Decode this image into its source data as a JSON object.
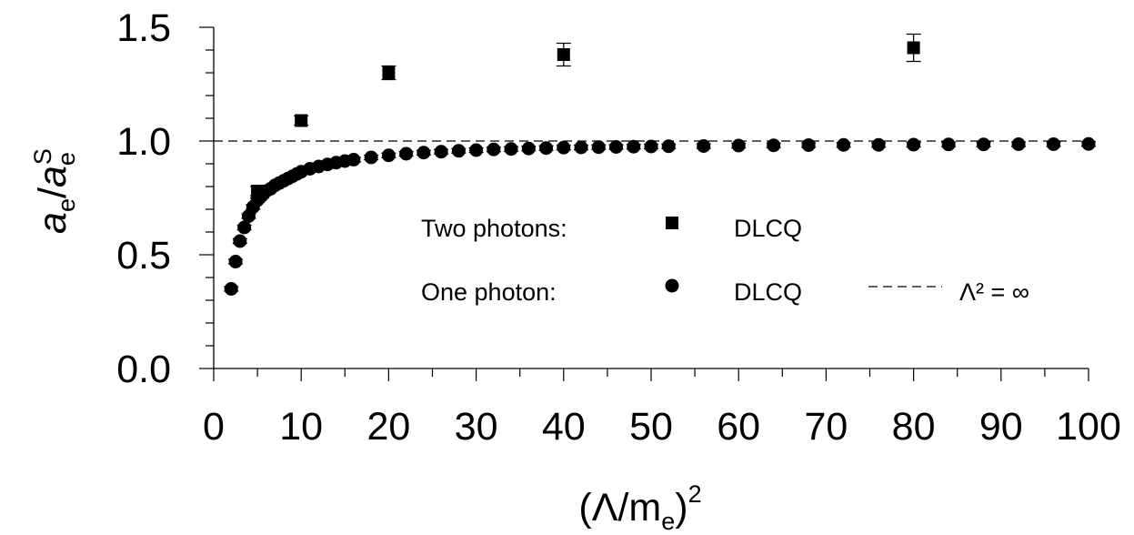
{
  "chart_data": {
    "type": "scatter",
    "xlabel": {
      "base": "(Λ/m",
      "sub": "e",
      "tail": ")",
      "sup": "2"
    },
    "ylabel": {
      "num": "a",
      "num_sub": "e",
      "slash": "/",
      "den": "a",
      "den_sub": "e",
      "den_sup": "S"
    },
    "xlim": [
      0,
      100
    ],
    "ylim": [
      0,
      1.5
    ],
    "x_ticks": [
      0,
      10,
      20,
      30,
      40,
      50,
      60,
      70,
      80,
      90,
      100
    ],
    "x_tick_labels": [
      "0",
      "10",
      "20",
      "30",
      "40",
      "50",
      "60",
      "70",
      "80",
      "90",
      "100"
    ],
    "y_ticks": [
      0,
      0.5,
      1.0,
      1.5
    ],
    "y_tick_labels": [
      "0.0",
      "0.5",
      "1.0",
      "1.5"
    ],
    "grid": false,
    "reference_line": {
      "y": 1.0,
      "style": "dashed",
      "label": "Λ² = ∞"
    },
    "series": [
      {
        "name": "DLCQ",
        "group_label": "Two photons:",
        "marker": "square",
        "x": [
          5,
          10,
          20,
          40,
          80
        ],
        "y": [
          0.78,
          1.09,
          1.3,
          1.38,
          1.41
        ],
        "err": [
          0.02,
          0.02,
          0.03,
          0.05,
          0.06
        ]
      },
      {
        "name": "DLCQ",
        "group_label": "One photon:",
        "marker": "circle",
        "x": [
          2,
          2.5,
          3,
          3.5,
          4,
          4.5,
          5,
          5.5,
          6,
          6.5,
          7,
          7.5,
          8,
          8.5,
          9,
          9.5,
          10,
          11,
          12,
          13,
          14,
          15,
          16,
          18,
          20,
          22,
          24,
          26,
          28,
          30,
          32,
          34,
          36,
          38,
          40,
          42,
          44,
          46,
          48,
          50,
          52,
          56,
          60,
          64,
          68,
          72,
          76,
          80,
          84,
          88,
          92,
          96,
          100
        ],
        "y": [
          0.35,
          0.47,
          0.56,
          0.62,
          0.67,
          0.71,
          0.74,
          0.76,
          0.78,
          0.79,
          0.805,
          0.815,
          0.825,
          0.835,
          0.845,
          0.855,
          0.865,
          0.878,
          0.888,
          0.897,
          0.905,
          0.912,
          0.918,
          0.928,
          0.937,
          0.944,
          0.949,
          0.953,
          0.957,
          0.96,
          0.963,
          0.965,
          0.967,
          0.969,
          0.971,
          0.972,
          0.973,
          0.974,
          0.975,
          0.976,
          0.977,
          0.978,
          0.98,
          0.981,
          0.982,
          0.983,
          0.983,
          0.984,
          0.985,
          0.985,
          0.986,
          0.986,
          0.987
        ],
        "err": 0.01
      }
    ]
  },
  "legend": {
    "row1_label": "Two photons:",
    "row1_name": "DLCQ",
    "row2_label": "One photon:",
    "row2_name": "DLCQ",
    "ref_label": "Λ² = ∞"
  }
}
